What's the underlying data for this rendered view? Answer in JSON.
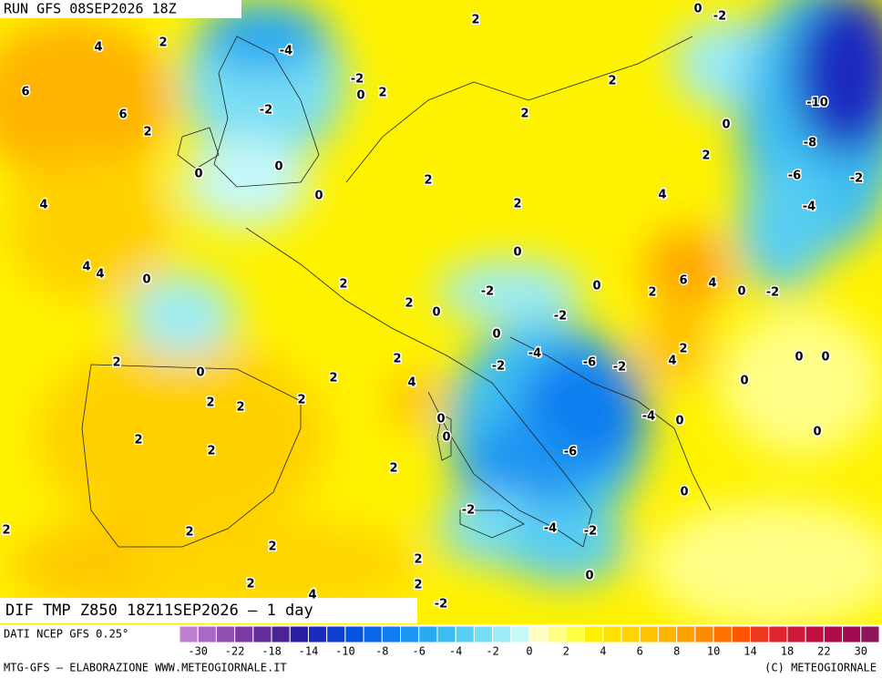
{
  "header": {
    "title": "RUN GFS 08SEP2026 18Z"
  },
  "map": {
    "title": "DIF TMP Z850 18Z11SEP2026 – 1 day",
    "labels": [
      2,
      0,
      -2,
      4,
      2,
      -4,
      -2,
      0,
      2,
      6,
      6,
      2,
      -2,
      2,
      2,
      0,
      -10,
      -8,
      2,
      0,
      0,
      -6,
      -2,
      2,
      0,
      4,
      4,
      2,
      -4,
      0,
      4,
      4,
      0,
      2,
      6,
      4,
      0,
      -2,
      -2,
      0,
      2,
      2,
      0,
      -2,
      0,
      -4,
      2,
      4,
      0,
      0,
      2,
      2,
      0,
      -2,
      -6,
      -2,
      0,
      2,
      4,
      2,
      2,
      2,
      0,
      -4,
      0,
      0,
      0,
      2,
      2,
      -6,
      2,
      0,
      -2,
      2,
      2,
      -4,
      -2,
      2,
      2,
      2,
      4,
      2,
      0,
      -2
    ]
  },
  "legend": {
    "source": "DATI NCEP GFS 0.25°",
    "colors": [
      "#c080d0",
      "#a868c4",
      "#9050b4",
      "#7a3ca4",
      "#642c98",
      "#4a2494",
      "#2a1ea4",
      "#1a2cc0",
      "#0c40d0",
      "#0454e0",
      "#0868e8",
      "#107ef0",
      "#1c94f2",
      "#2aaaf2",
      "#3cbef2",
      "#58cef2",
      "#78def4",
      "#9cecf6",
      "#c6f8f8",
      "#ffffc4",
      "#ffff88",
      "#ffff44",
      "#fff000",
      "#ffe200",
      "#ffd400",
      "#ffc400",
      "#ffb400",
      "#ffa200",
      "#ff8c00",
      "#ff7200",
      "#ff5400",
      "#f03820",
      "#e02430",
      "#d01838",
      "#c01040",
      "#b00a48",
      "#a00c50",
      "#901458"
    ],
    "ticks": [
      -30,
      -22,
      -18,
      -14,
      -10,
      -8,
      -6,
      -4,
      -2,
      0,
      2,
      4,
      6,
      8,
      10,
      14,
      18,
      22,
      30
    ]
  },
  "footer": {
    "left": "MTG-GFS – ELABORAZIONE WWW.METEOGIORNALE.IT",
    "right": "(C) METEOGIORNALE"
  }
}
